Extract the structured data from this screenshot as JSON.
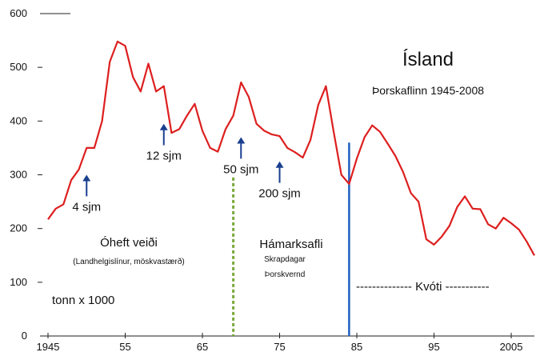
{
  "chart_data": {
    "type": "line",
    "title": "Ísland",
    "subtitle": "Þorskaflinn 1945-2008",
    "unit_label": "tonn x 1000",
    "ylim": [
      0,
      600
    ],
    "xlim": [
      1945,
      2008
    ],
    "y_ticks": [
      0,
      100,
      200,
      300,
      400,
      500,
      600
    ],
    "x_ticks": [
      {
        "value": 1945,
        "label": "1945"
      },
      {
        "value": 1955,
        "label": "55"
      },
      {
        "value": 1965,
        "label": "65"
      },
      {
        "value": 1975,
        "label": "75"
      },
      {
        "value": 1985,
        "label": "85"
      },
      {
        "value": 1995,
        "label": "95"
      },
      {
        "value": 2005,
        "label": "2005"
      }
    ],
    "grid": false,
    "colors": {
      "series": "#dd1f1f",
      "arrow": "#1a3f8f",
      "quota_line": "#1f5fbf",
      "maxcatch_line": "#7aa83a"
    },
    "series": [
      {
        "x": [
          1945,
          1946,
          1947,
          1948,
          1949,
          1950,
          1951,
          1952,
          1953,
          1954,
          1955,
          1956,
          1957,
          1958,
          1959,
          1960,
          1961,
          1962,
          1963,
          1964,
          1965,
          1966,
          1967,
          1968,
          1969,
          1970,
          1971,
          1972,
          1973,
          1974,
          1975,
          1976,
          1977,
          1978,
          1979,
          1980,
          1981,
          1982,
          1983,
          1984,
          1985,
          1986,
          1987,
          1988,
          1989,
          1990,
          1991,
          1992,
          1993,
          1994,
          1995,
          1996,
          1997,
          1998,
          1999,
          2000,
          2001,
          2002,
          2003,
          2004,
          2005,
          2006,
          2007,
          2008
        ],
        "y": [
          217,
          237,
          245,
          290,
          310,
          350,
          350,
          400,
          510,
          548,
          540,
          482,
          455,
          507,
          455,
          465,
          378,
          385,
          410,
          432,
          382,
          350,
          343,
          385,
          410,
          472,
          445,
          395,
          382,
          375,
          372,
          350,
          342,
          332,
          365,
          430,
          465,
          380,
          300,
          283,
          330,
          370,
          392,
          380,
          358,
          335,
          305,
          266,
          250,
          180,
          170,
          185,
          205,
          240,
          260,
          237,
          236,
          208,
          200,
          220,
          210,
          198,
          176,
          150
        ]
      }
    ],
    "arrows": [
      {
        "x": 1950,
        "y_from": 260,
        "y_to": 300,
        "label": "4 sjm"
      },
      {
        "x": 1960,
        "y_from": 355,
        "y_to": 395,
        "label": "12 sjm"
      },
      {
        "x": 1970,
        "y_from": 330,
        "y_to": 370,
        "label": "50 sjm"
      },
      {
        "x": 1975,
        "y_from": 285,
        "y_to": 325,
        "label": "200 sjm"
      }
    ],
    "vertical_lines": [
      {
        "x": 1984,
        "y_top": 360,
        "style": "solid"
      },
      {
        "x": 1969,
        "y_top": 295,
        "style": "dashed"
      }
    ],
    "annotations": {
      "free_fishing": "Óheft veiði",
      "free_fishing_sub": "(Landhelgislínur, möskvastærð)",
      "max_catch": "Hámarksafli",
      "max_catch_sub1": "Skrapdagar",
      "max_catch_sub2": "Þorskvernd",
      "quota": "-------------- Kvóti -----------"
    }
  }
}
